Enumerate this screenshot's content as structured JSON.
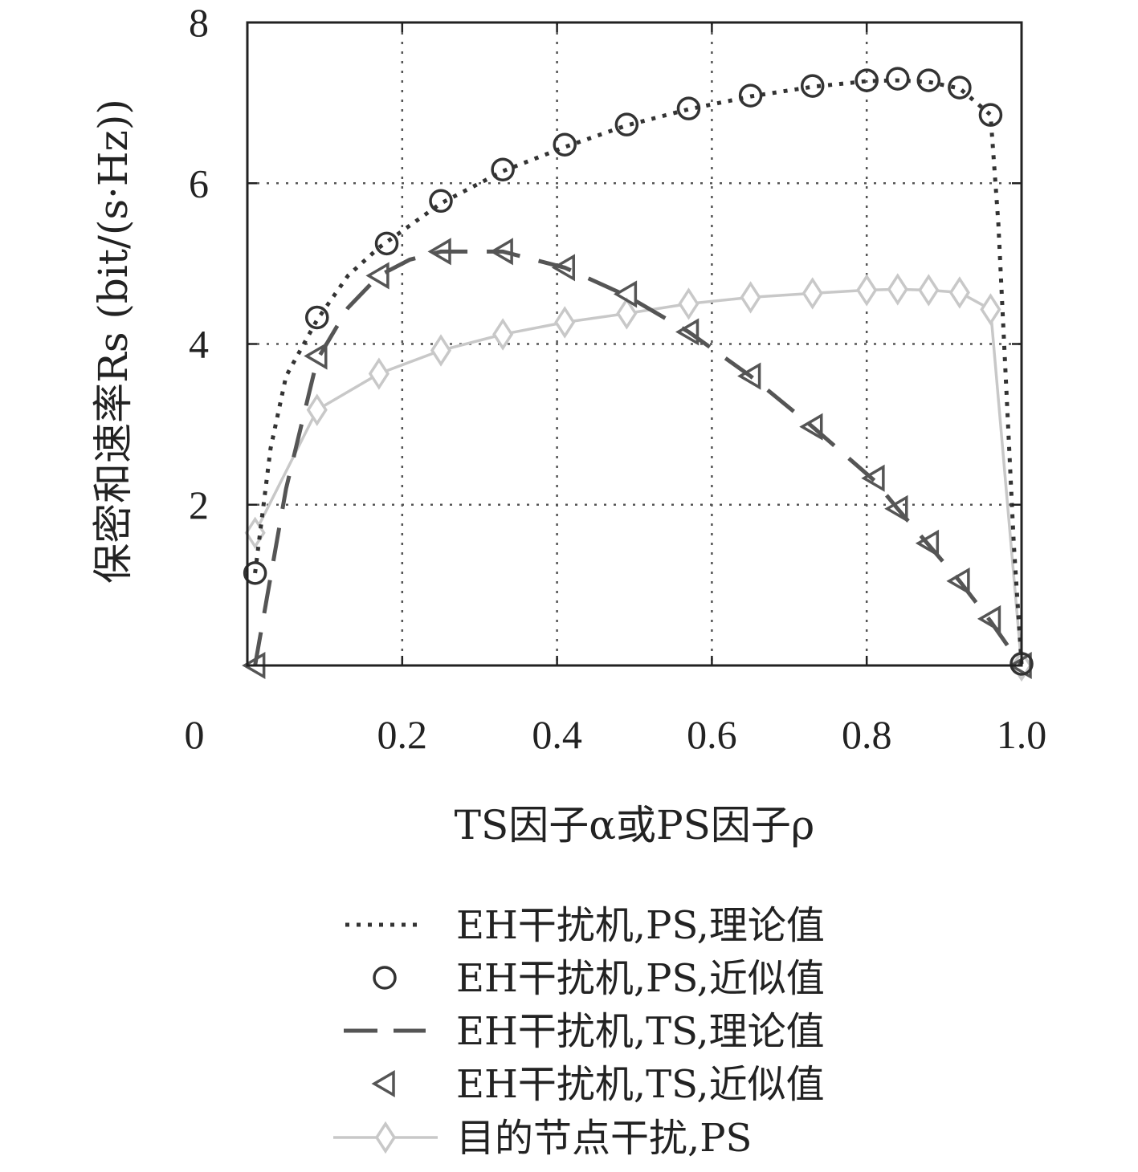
{
  "chart_data": {
    "type": "line",
    "title": "",
    "xlabel": "TS因子α或PS因子ρ",
    "ylabel": "保密和速率Rs (bit/(s·Hz))",
    "xlim": [
      0,
      1.0
    ],
    "ylim": [
      0,
      8
    ],
    "x_ticks": [
      0,
      0.2,
      0.4,
      0.6,
      0.8,
      1.0
    ],
    "x_tick_labels": [
      "0",
      "0.2",
      "0.4",
      "0.6",
      "0.8",
      "1.0"
    ],
    "y_ticks": [
      2,
      4,
      6,
      8
    ],
    "y_tick_labels": [
      "2",
      "4",
      "6",
      "8"
    ],
    "grid": true,
    "legend_position": "below",
    "series": [
      {
        "name": "EH干扰机,PS,理论值",
        "style": "dotted",
        "color": "#333333",
        "x": [
          0.01,
          0.03,
          0.05,
          0.09,
          0.13,
          0.17,
          0.25,
          0.33,
          0.41,
          0.49,
          0.57,
          0.65,
          0.73,
          0.8,
          0.84,
          0.88,
          0.92,
          0.96,
          0.97,
          0.99,
          1.0
        ],
        "y": [
          1.15,
          2.7,
          3.6,
          4.3,
          4.85,
          5.2,
          5.75,
          6.15,
          6.45,
          6.72,
          6.92,
          7.08,
          7.2,
          7.27,
          7.28,
          7.26,
          7.18,
          6.85,
          5.5,
          1.5,
          0.02
        ]
      },
      {
        "name": "EH干扰机,PS,近似值",
        "style": "marker-circle",
        "color": "#333333",
        "x": [
          0.01,
          0.09,
          0.18,
          0.25,
          0.33,
          0.41,
          0.49,
          0.57,
          0.65,
          0.73,
          0.8,
          0.84,
          0.88,
          0.92,
          0.96,
          1.0
        ],
        "y": [
          1.15,
          4.33,
          5.25,
          5.78,
          6.17,
          6.48,
          6.73,
          6.93,
          7.09,
          7.21,
          7.28,
          7.3,
          7.28,
          7.19,
          6.85,
          0.02
        ]
      },
      {
        "name": "EH干扰机,TS,理论值",
        "style": "dashed",
        "color": "#555555",
        "x": [
          0.01,
          0.05,
          0.09,
          0.13,
          0.17,
          0.21,
          0.25,
          0.33,
          0.41,
          0.49,
          0.57,
          0.65,
          0.73,
          0.81,
          0.84,
          0.88,
          0.92,
          0.96,
          1.0
        ],
        "y": [
          0.0,
          2.2,
          3.8,
          4.45,
          4.85,
          5.05,
          5.15,
          5.15,
          4.95,
          4.6,
          4.15,
          3.6,
          2.97,
          2.3,
          1.95,
          1.5,
          1.05,
          0.55,
          0.0
        ]
      },
      {
        "name": "EH干扰机,TS,近似值",
        "style": "marker-triangle-left",
        "color": "#555555",
        "x": [
          0.01,
          0.09,
          0.17,
          0.25,
          0.33,
          0.41,
          0.49,
          0.57,
          0.65,
          0.73,
          0.81,
          0.84,
          0.88,
          0.92,
          0.96,
          1.0
        ],
        "y": [
          0.0,
          3.85,
          4.85,
          5.15,
          5.15,
          4.95,
          4.62,
          4.15,
          3.6,
          2.97,
          2.33,
          1.95,
          1.52,
          1.05,
          0.58,
          0.0
        ]
      },
      {
        "name": "目的节点干扰,PS",
        "style": "solid-marker-diamond",
        "color": "#c8c8c8",
        "x": [
          0.01,
          0.09,
          0.17,
          0.25,
          0.33,
          0.41,
          0.49,
          0.57,
          0.65,
          0.73,
          0.8,
          0.84,
          0.88,
          0.92,
          0.96,
          1.0
        ],
        "y": [
          1.65,
          3.18,
          3.63,
          3.92,
          4.12,
          4.27,
          4.38,
          4.5,
          4.58,
          4.63,
          4.67,
          4.68,
          4.67,
          4.64,
          4.43,
          0.0
        ]
      }
    ]
  }
}
